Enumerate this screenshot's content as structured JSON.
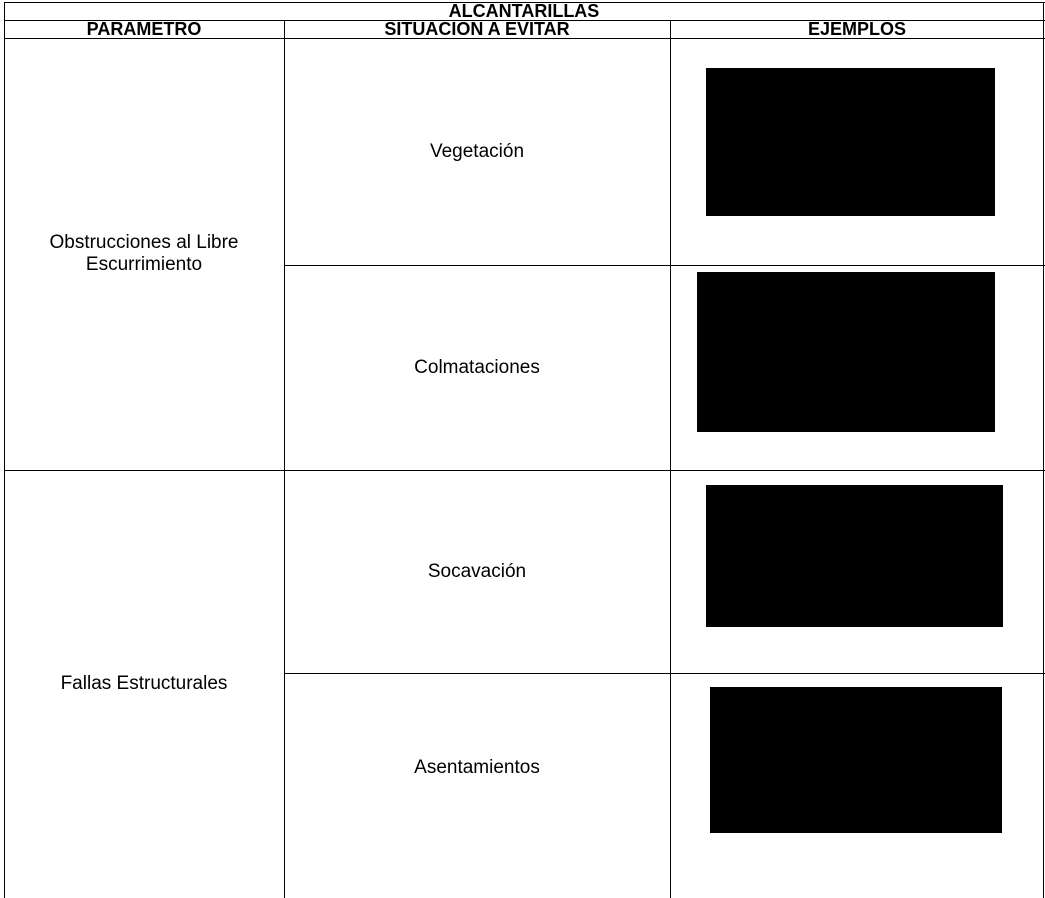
{
  "table": {
    "title": "ALCANTARILLAS",
    "headers": [
      "PARAMETRO",
      "SITUACION A EVITAR",
      "EJEMPLOS"
    ],
    "groups": [
      {
        "parameter": "Obstrucciones al Libre Escurrimiento",
        "situations": [
          "Vegetación",
          "Colmataciones"
        ]
      },
      {
        "parameter": "Fallas Estructurales",
        "situations": [
          "Socavación",
          "Asentamientos"
        ]
      }
    ]
  }
}
